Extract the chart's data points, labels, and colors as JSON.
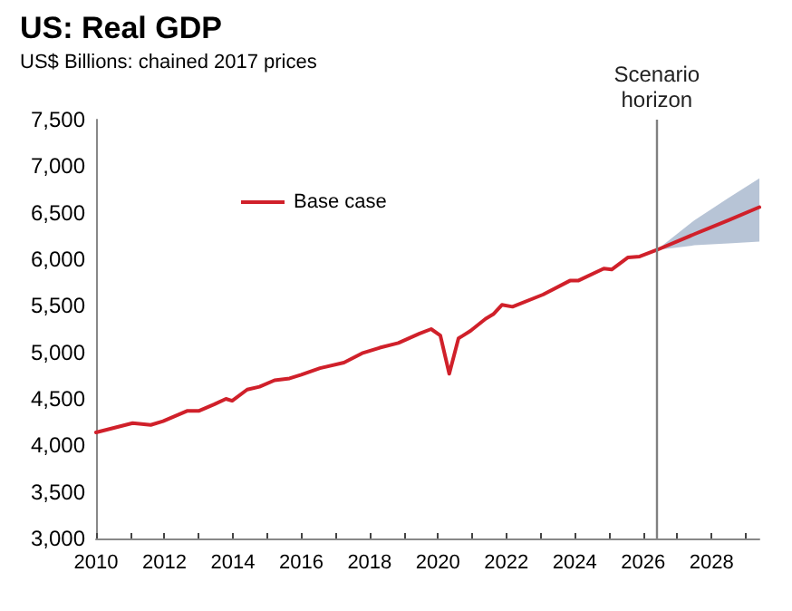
{
  "chart_data": {
    "type": "line",
    "title": "US: Real GDP",
    "subtitle": "US$ Billions: chained 2017 prices",
    "x": [
      2010.0,
      2011.07,
      2011.6,
      2011.96,
      2012.66,
      2013.0,
      2013.45,
      2013.8,
      2013.98,
      2014.42,
      2014.78,
      2015.22,
      2015.66,
      2016.0,
      2016.55,
      2017.25,
      2017.78,
      2018.3,
      2018.84,
      2019.45,
      2019.8,
      2020.07,
      2020.33,
      2020.6,
      2020.95,
      2021.39,
      2021.62,
      2021.87,
      2022.18,
      2023.07,
      2023.86,
      2024.1,
      2024.85,
      2025.08,
      2025.56,
      2025.9,
      2026.4,
      2027.5,
      2028.5,
      2029.4
    ],
    "series": [
      {
        "name": "Base case",
        "color": "#d0202a",
        "values": [
          4140,
          4240,
          4220,
          4260,
          4370,
          4370,
          4440,
          4500,
          4480,
          4600,
          4630,
          4700,
          4720,
          4760,
          4830,
          4890,
          4990,
          5050,
          5100,
          5200,
          5250,
          5180,
          4770,
          5150,
          5230,
          5360,
          5410,
          5510,
          5490,
          5620,
          5770,
          5770,
          5900,
          5890,
          6020,
          6030,
          6100,
          6270,
          6420,
          6560
        ],
        "lower": [
          null,
          null,
          null,
          null,
          null,
          null,
          null,
          null,
          null,
          null,
          null,
          null,
          null,
          null,
          null,
          null,
          null,
          null,
          null,
          null,
          null,
          null,
          null,
          null,
          null,
          null,
          null,
          null,
          null,
          null,
          null,
          null,
          null,
          null,
          null,
          null,
          6100,
          6150,
          6170,
          6190
        ],
        "upper": [
          null,
          null,
          null,
          null,
          null,
          null,
          null,
          null,
          null,
          null,
          null,
          null,
          null,
          null,
          null,
          null,
          null,
          null,
          null,
          null,
          null,
          null,
          null,
          null,
          null,
          null,
          null,
          null,
          null,
          null,
          null,
          null,
          null,
          null,
          null,
          null,
          6100,
          6420,
          6660,
          6870
        ]
      }
    ],
    "xlim": [
      2010,
      2029.4
    ],
    "xticks": [
      2010,
      {
        "value": 2011,
        "label": null
      },
      2012,
      {
        "value": 2013,
        "label": null
      },
      2014,
      {
        "value": 2015,
        "label": null
      },
      2016,
      {
        "value": 2017,
        "label": null
      },
      2018,
      {
        "value": 2019,
        "label": null
      },
      2020,
      {
        "value": 2021,
        "label": null
      },
      2022,
      {
        "value": 2023,
        "label": null
      },
      2024,
      {
        "value": 2025,
        "label": null
      },
      2026,
      {
        "value": 2027,
        "label": null
      },
      2028,
      {
        "value": 2029,
        "label": null
      }
    ],
    "ylim": [
      3000,
      7500
    ],
    "yticks": [
      {
        "value": 3000,
        "label": "3,000"
      },
      {
        "value": 3500,
        "label": "3,500"
      },
      {
        "value": 4000,
        "label": "4,000"
      },
      {
        "value": 4500,
        "label": "4,500"
      },
      {
        "value": 5000,
        "label": "5,000"
      },
      {
        "value": 5500,
        "label": "5,500"
      },
      {
        "value": 6000,
        "label": "6,000"
      },
      {
        "value": 6500,
        "label": "6,500"
      },
      {
        "value": 7000,
        "label": "7,000"
      },
      {
        "value": 7500,
        "label": "7,500"
      }
    ],
    "ref_lines": [
      {
        "axis": "x",
        "value": 2026.4,
        "label": "Scenario\nhorizon",
        "color": "#808080"
      }
    ],
    "legend": "top left",
    "grid": false,
    "marker": "none",
    "line_style": "solid"
  }
}
